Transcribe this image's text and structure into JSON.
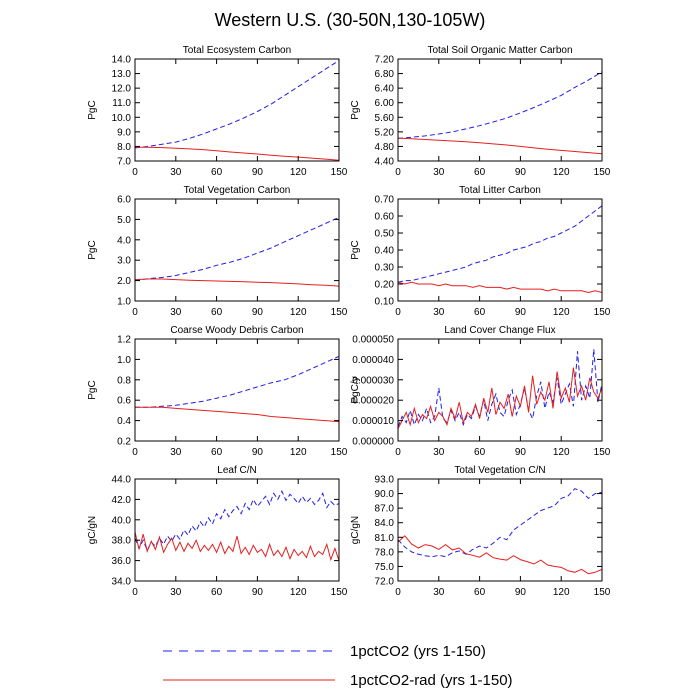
{
  "figure": {
    "title": "Western U.S. (30-50N,130-105W)"
  },
  "legend": [
    {
      "label": "1pctCO2 (yrs 1-150)",
      "color": "#1f1fe6",
      "dash": true
    },
    {
      "label": "1pctCO2-rad (yrs 1-150)",
      "color": "#e61f1f",
      "dash": false
    }
  ],
  "chart_data": [
    {
      "type": "line",
      "title": "Total Ecosystem Carbon",
      "ylabel": "PgC",
      "xlim": [
        0,
        150
      ],
      "ylim": [
        7.0,
        14.0
      ],
      "xticks": [
        "0",
        "30",
        "60",
        "90",
        "120",
        "150"
      ],
      "yticks": [
        "7.0",
        "8.0",
        "9.0",
        "10.0",
        "11.0",
        "12.0",
        "13.0",
        "14.0"
      ],
      "x": [
        0,
        10,
        20,
        30,
        40,
        50,
        60,
        70,
        80,
        90,
        100,
        110,
        120,
        130,
        140,
        150
      ],
      "series": [
        {
          "color": "#1f1fe6",
          "dash": true,
          "values": [
            7.9,
            8.0,
            8.15,
            8.3,
            8.55,
            8.85,
            9.2,
            9.55,
            9.95,
            10.4,
            10.9,
            11.5,
            12.1,
            12.7,
            13.3,
            13.9
          ]
        },
        {
          "color": "#e61f1f",
          "dash": false,
          "values": [
            7.95,
            7.95,
            7.92,
            7.88,
            7.83,
            7.78,
            7.7,
            7.62,
            7.55,
            7.48,
            7.4,
            7.33,
            7.27,
            7.2,
            7.13,
            7.05
          ]
        }
      ]
    },
    {
      "type": "line",
      "title": "Total Soil Organic Matter Carbon",
      "ylabel": "PgC",
      "xlim": [
        0,
        150
      ],
      "ylim": [
        4.4,
        7.2
      ],
      "xticks": [
        "0",
        "30",
        "60",
        "90",
        "120",
        "150"
      ],
      "yticks": [
        "4.40",
        "4.80",
        "5.20",
        "5.60",
        "6.00",
        "6.40",
        "6.80",
        "7.20"
      ],
      "x": [
        0,
        10,
        20,
        30,
        40,
        50,
        60,
        70,
        80,
        90,
        100,
        110,
        120,
        130,
        140,
        150
      ],
      "series": [
        {
          "color": "#1f1fe6",
          "dash": true,
          "values": [
            5.02,
            5.05,
            5.09,
            5.14,
            5.2,
            5.28,
            5.37,
            5.47,
            5.58,
            5.72,
            5.87,
            6.03,
            6.2,
            6.42,
            6.62,
            6.85
          ]
        },
        {
          "color": "#e61f1f",
          "dash": false,
          "values": [
            5.03,
            5.01,
            4.99,
            4.97,
            4.95,
            4.93,
            4.9,
            4.87,
            4.84,
            4.8,
            4.76,
            4.72,
            4.69,
            4.66,
            4.63,
            4.6
          ]
        }
      ]
    },
    {
      "type": "line",
      "title": "Total Vegetation Carbon",
      "ylabel": "PgC",
      "xlim": [
        0,
        150
      ],
      "ylim": [
        1.0,
        6.0
      ],
      "xticks": [
        "0",
        "30",
        "60",
        "90",
        "120",
        "150"
      ],
      "yticks": [
        "1.0",
        "2.0",
        "3.0",
        "4.0",
        "5.0",
        "6.0"
      ],
      "x": [
        0,
        10,
        20,
        30,
        40,
        50,
        60,
        70,
        80,
        90,
        100,
        110,
        120,
        130,
        140,
        150
      ],
      "series": [
        {
          "color": "#1f1fe6",
          "dash": true,
          "values": [
            2.0,
            2.1,
            2.15,
            2.25,
            2.4,
            2.55,
            2.75,
            2.9,
            3.1,
            3.35,
            3.6,
            3.9,
            4.2,
            4.5,
            4.8,
            5.1
          ]
        },
        {
          "color": "#e61f1f",
          "dash": false,
          "values": [
            2.05,
            2.08,
            2.08,
            2.05,
            2.02,
            2.0,
            1.98,
            1.96,
            1.94,
            1.92,
            1.9,
            1.87,
            1.84,
            1.8,
            1.77,
            1.73
          ]
        }
      ]
    },
    {
      "type": "line",
      "title": "Total Litter Carbon",
      "ylabel": "PgC",
      "xlim": [
        0,
        150
      ],
      "ylim": [
        0.1,
        0.7
      ],
      "xticks": [
        "0",
        "30",
        "60",
        "90",
        "120",
        "150"
      ],
      "yticks": [
        "0.10",
        "0.20",
        "0.30",
        "0.40",
        "0.50",
        "0.60",
        "0.70"
      ],
      "x": [
        0,
        5,
        10,
        15,
        20,
        25,
        30,
        35,
        40,
        45,
        50,
        55,
        60,
        65,
        70,
        75,
        80,
        85,
        90,
        95,
        100,
        105,
        110,
        115,
        120,
        125,
        130,
        135,
        140,
        145,
        150
      ],
      "series": [
        {
          "color": "#1f1fe6",
          "dash": true,
          "values": [
            0.21,
            0.22,
            0.22,
            0.23,
            0.24,
            0.25,
            0.26,
            0.27,
            0.28,
            0.29,
            0.3,
            0.32,
            0.33,
            0.34,
            0.36,
            0.37,
            0.38,
            0.4,
            0.41,
            0.42,
            0.44,
            0.45,
            0.47,
            0.48,
            0.5,
            0.52,
            0.54,
            0.57,
            0.6,
            0.63,
            0.66
          ]
        },
        {
          "color": "#e61f1f",
          "dash": false,
          "values": [
            0.21,
            0.2,
            0.21,
            0.2,
            0.2,
            0.2,
            0.19,
            0.2,
            0.19,
            0.19,
            0.19,
            0.18,
            0.19,
            0.18,
            0.18,
            0.18,
            0.17,
            0.18,
            0.17,
            0.17,
            0.17,
            0.17,
            0.16,
            0.17,
            0.16,
            0.16,
            0.16,
            0.16,
            0.15,
            0.16,
            0.15
          ]
        }
      ]
    },
    {
      "type": "line",
      "title": "Coarse Woody Debris Carbon",
      "ylabel": "PgC",
      "xlim": [
        0,
        150
      ],
      "ylim": [
        0.2,
        1.2
      ],
      "xticks": [
        "0",
        "30",
        "60",
        "90",
        "120",
        "150"
      ],
      "yticks": [
        "0.2",
        "0.4",
        "0.6",
        "0.8",
        "1.0",
        "1.2"
      ],
      "x": [
        0,
        10,
        20,
        30,
        40,
        50,
        60,
        70,
        80,
        90,
        100,
        110,
        120,
        130,
        140,
        150
      ],
      "series": [
        {
          "color": "#1f1fe6",
          "dash": true,
          "values": [
            0.53,
            0.53,
            0.54,
            0.55,
            0.57,
            0.59,
            0.62,
            0.65,
            0.69,
            0.73,
            0.77,
            0.8,
            0.85,
            0.91,
            0.97,
            1.03
          ]
        },
        {
          "color": "#e61f1f",
          "dash": false,
          "values": [
            0.53,
            0.53,
            0.53,
            0.52,
            0.51,
            0.5,
            0.49,
            0.48,
            0.47,
            0.46,
            0.44,
            0.43,
            0.42,
            0.41,
            0.4,
            0.39
          ]
        }
      ]
    },
    {
      "type": "line",
      "title": "Land Cover Change Flux",
      "ylabel": "PgC/y",
      "xlim": [
        0,
        150
      ],
      "ylim": [
        0,
        5e-05
      ],
      "xticks": [
        "0",
        "30",
        "60",
        "90",
        "120",
        "150"
      ],
      "yticks": [
        "0.000000",
        "0.000010",
        "0.000020",
        "0.000030",
        "0.000040",
        "0.000050"
      ],
      "x": [
        0,
        3,
        6,
        9,
        12,
        15,
        18,
        21,
        24,
        27,
        30,
        33,
        36,
        39,
        42,
        45,
        48,
        51,
        54,
        57,
        60,
        63,
        66,
        69,
        72,
        75,
        78,
        81,
        84,
        87,
        90,
        93,
        96,
        99,
        102,
        105,
        108,
        111,
        114,
        117,
        120,
        123,
        126,
        129,
        132,
        135,
        138,
        141,
        144,
        147,
        150
      ],
      "series": [
        {
          "color": "#1f1fe6",
          "dash": true,
          "values": [
            7e-06,
            1.2e-05,
            9e-06,
            1.5e-05,
            8e-06,
            1.3e-05,
            1e-05,
            1.6e-05,
            9e-06,
            1.2e-05,
            2.6e-05,
            1.1e-05,
            9e-06,
            1.5e-05,
            1e-05,
            1.4e-05,
            8e-06,
            1.3e-05,
            1.1e-05,
            1.7e-05,
            1.2e-05,
            2e-05,
            1e-05,
            1.8e-05,
            2.3e-05,
            1.4e-05,
            1.2e-05,
            2e-05,
            2.5e-05,
            1.3e-05,
            1.8e-05,
            2.6e-05,
            1.5e-05,
            1.1e-05,
            2.2e-05,
            2.9e-05,
            1.6e-05,
            2.4e-05,
            1.9e-05,
            3.1e-05,
            1.8e-05,
            2.3e-05,
            2.8e-05,
            1.7e-05,
            4.4e-05,
            2e-05,
            2.7e-05,
            2.1e-05,
            4.5e-05,
            1.9e-05,
            2.8e-05
          ]
        },
        {
          "color": "#e61f1f",
          "dash": false,
          "values": [
            6e-06,
            1e-05,
            1.4e-05,
            8e-06,
            1.6e-05,
            9e-06,
            1.3e-05,
            1.1e-05,
            1.7e-05,
            1e-05,
            1.4e-05,
            1.2e-05,
            8e-06,
            1.6e-05,
            1.1e-05,
            1.9e-05,
            9e-06,
            1.4e-05,
            1.2e-05,
            1.8e-05,
            1.1e-05,
            2.1e-05,
            1.4e-05,
            2.6e-05,
            1.3e-05,
            1.9e-05,
            1.6e-05,
            2.3e-05,
            1.2e-05,
            2.2e-05,
            1.7e-05,
            2.7e-05,
            1.4e-05,
            3.2e-05,
            1.8e-05,
            2.4e-05,
            2e-05,
            2.9e-05,
            1.6e-05,
            3.4e-05,
            2.1e-05,
            2.6e-05,
            1.9e-05,
            3.6e-05,
            2.2e-05,
            2.7e-05,
            2e-05,
            3.1e-05,
            2.4e-05,
            2.1e-05,
            2.6e-05
          ]
        }
      ]
    },
    {
      "type": "line",
      "title": "Leaf C/N",
      "ylabel": "gC/gN",
      "xlim": [
        0,
        150
      ],
      "ylim": [
        34.0,
        44.0
      ],
      "xticks": [
        "0",
        "30",
        "60",
        "90",
        "120",
        "150"
      ],
      "yticks": [
        "34.0",
        "36.0",
        "38.0",
        "40.0",
        "42.0",
        "44.0"
      ],
      "x": [
        0,
        3,
        6,
        9,
        12,
        15,
        18,
        21,
        24,
        27,
        30,
        33,
        36,
        39,
        42,
        45,
        48,
        51,
        54,
        57,
        60,
        63,
        66,
        69,
        72,
        75,
        78,
        81,
        84,
        87,
        90,
        93,
        96,
        99,
        102,
        105,
        108,
        111,
        114,
        117,
        120,
        123,
        126,
        129,
        132,
        135,
        138,
        141,
        144,
        147,
        150
      ],
      "series": [
        {
          "color": "#1f1fe6",
          "dash": true,
          "values": [
            38.2,
            37.2,
            38.0,
            37.0,
            37.8,
            37.4,
            38.2,
            37.6,
            38.4,
            37.9,
            38.6,
            38.1,
            39.0,
            38.5,
            39.4,
            38.9,
            39.8,
            39.3,
            40.2,
            39.6,
            40.6,
            40.1,
            41.0,
            40.3,
            40.9,
            41.3,
            40.6,
            41.6,
            41.0,
            42.0,
            41.3,
            41.8,
            42.3,
            41.5,
            42.6,
            42.0,
            42.8,
            41.9,
            42.5,
            42.1,
            41.6,
            42.3,
            41.7,
            42.1,
            41.5,
            41.9,
            42.6,
            41.2,
            41.8,
            41.4,
            41.6
          ]
        },
        {
          "color": "#e61f1f",
          "dash": false,
          "values": [
            38.8,
            37.1,
            38.6,
            36.9,
            37.9,
            37.1,
            38.3,
            36.8,
            37.6,
            38.2,
            37.0,
            37.8,
            36.9,
            37.7,
            37.2,
            38.0,
            36.9,
            37.5,
            37.0,
            37.6,
            36.8,
            37.8,
            36.7,
            37.4,
            36.9,
            38.4,
            36.7,
            37.3,
            36.6,
            37.5,
            36.8,
            37.1,
            36.4,
            37.6,
            36.5,
            37.0,
            36.4,
            37.3,
            36.2,
            37.1,
            36.5,
            36.9,
            36.3,
            37.4,
            36.4,
            36.9,
            36.6,
            37.6,
            36.1,
            37.2,
            36.0
          ]
        }
      ]
    },
    {
      "type": "line",
      "title": "Total Vegetation C/N",
      "ylabel": "gC/gN",
      "xlim": [
        0,
        150
      ],
      "ylim": [
        72.0,
        93.0
      ],
      "xticks": [
        "0",
        "30",
        "60",
        "90",
        "120",
        "150"
      ],
      "yticks": [
        "72.0",
        "75.0",
        "78.0",
        "81.0",
        "84.0",
        "87.0",
        "90.0",
        "93.0"
      ],
      "x": [
        0,
        5,
        10,
        15,
        20,
        25,
        30,
        35,
        40,
        45,
        50,
        55,
        60,
        65,
        70,
        75,
        80,
        85,
        90,
        95,
        100,
        105,
        110,
        115,
        120,
        125,
        130,
        135,
        140,
        145,
        150
      ],
      "series": [
        {
          "color": "#1f1fe6",
          "dash": true,
          "values": [
            80.5,
            79.0,
            78.0,
            77.5,
            77.2,
            77.0,
            77.3,
            77.0,
            77.8,
            78.2,
            77.5,
            78.5,
            79.2,
            78.8,
            79.8,
            81.0,
            80.5,
            82.5,
            83.5,
            84.5,
            85.5,
            86.5,
            87.0,
            87.5,
            89.0,
            89.5,
            91.0,
            90.5,
            89.0,
            90.0,
            90.3
          ]
        },
        {
          "color": "#e61f1f",
          "dash": false,
          "values": [
            80.0,
            81.3,
            79.6,
            78.8,
            79.5,
            79.2,
            78.5,
            79.5,
            78.4,
            78.8,
            77.6,
            77.3,
            76.9,
            77.8,
            76.8,
            76.5,
            76.3,
            77.2,
            76.4,
            76.0,
            75.5,
            76.3,
            75.3,
            75.0,
            74.8,
            74.1,
            73.8,
            74.4,
            73.5,
            73.8,
            74.4
          ]
        }
      ]
    }
  ]
}
